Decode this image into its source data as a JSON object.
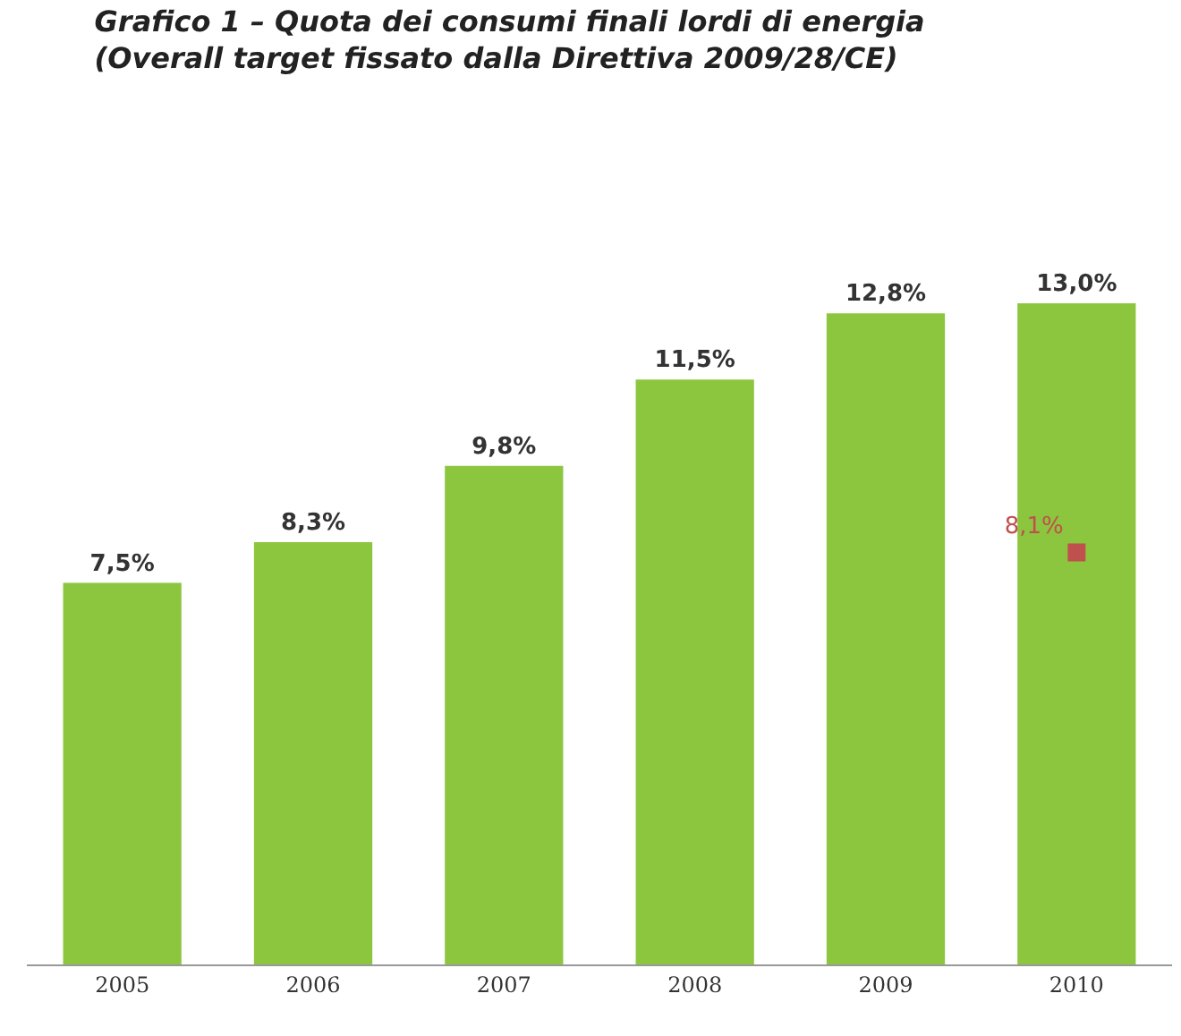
{
  "chart_data": {
    "type": "bar",
    "title": "Grafico 1 – Quota dei consumi finali lordi di energia",
    "subtitle": "(Overall target fissato dalla Direttiva 2009/28/CE)",
    "categories": [
      "2005",
      "2006",
      "2007",
      "2008",
      "2009",
      "2010"
    ],
    "series": [
      {
        "color": "#8cc63f",
        "values": [
          7.5,
          8.3,
          9.8,
          11.5,
          12.8,
          13.0
        ],
        "value_labels": [
          "7,5%",
          "8,3%",
          "9,8%",
          "11,5%",
          "12,8%",
          "13,0%"
        ]
      },
      {
        "type": "line",
        "color": "#c0504d",
        "marker": "square",
        "values": [
          null,
          null,
          null,
          null,
          null,
          8.1
        ],
        "value_labels": [
          null,
          null,
          null,
          null,
          null,
          "8,1%"
        ]
      }
    ],
    "grid": false
  }
}
